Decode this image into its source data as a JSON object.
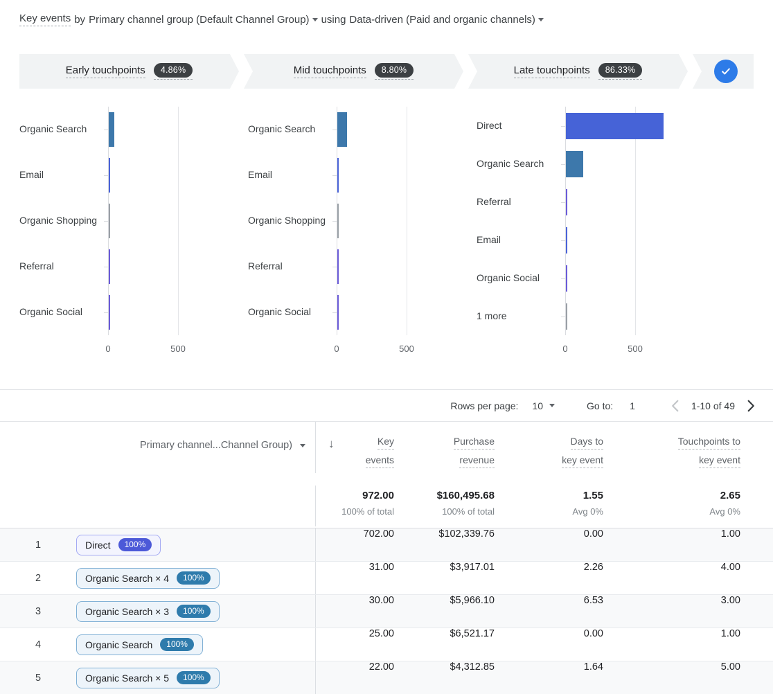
{
  "header": {
    "metric": "Key events",
    "by": "by",
    "dimension": "Primary channel group (Default Channel Group)",
    "using": "using",
    "model": "Data-driven (Paid and organic channels)"
  },
  "funnel": {
    "stages": [
      {
        "id": "early",
        "label": "Early touchpoints",
        "value": "4.86%"
      },
      {
        "id": "mid",
        "label": "Mid touchpoints",
        "value": "8.80%"
      },
      {
        "id": "late",
        "label": "Late touchpoints",
        "value": "86.33%"
      }
    ],
    "badge_bg": "#3c4043",
    "check_color": "#2d7be8"
  },
  "chart_data": [
    {
      "type": "bar",
      "orientation": "horizontal",
      "title": "Early touchpoints",
      "categories": [
        "Organic Search",
        "Email",
        "Organic Shopping",
        "Referral",
        "Organic Social"
      ],
      "values": [
        40,
        5,
        2,
        3,
        3
      ],
      "colors": [
        "#3d78ab",
        "#4a63d8",
        "#9aa0a6",
        "#6a5bd8",
        "#6a5bd8"
      ],
      "xticks": [
        0,
        500
      ],
      "xlim": [
        0,
        940
      ],
      "grid": true
    },
    {
      "type": "bar",
      "orientation": "horizontal",
      "title": "Mid touchpoints",
      "categories": [
        "Organic Search",
        "Email",
        "Organic Shopping",
        "Referral",
        "Organic Social"
      ],
      "values": [
        70,
        6,
        2,
        4,
        4
      ],
      "colors": [
        "#3d78ab",
        "#4a63d8",
        "#9aa0a6",
        "#6a5bd8",
        "#6a5bd8"
      ],
      "xticks": [
        0,
        500
      ],
      "xlim": [
        0,
        940
      ],
      "grid": true
    },
    {
      "type": "bar",
      "orientation": "horizontal",
      "title": "Late touchpoints",
      "categories": [
        "Direct",
        "Organic Search",
        "Referral",
        "Email",
        "Organic Social",
        "1 more"
      ],
      "values": [
        697,
        125,
        6,
        6,
        5,
        2
      ],
      "colors": [
        "#4663d7",
        "#3d78ab",
        "#6a5bd8",
        "#4a63d8",
        "#6a5bd8",
        "#9aa0a6"
      ],
      "xticks": [
        0,
        500
      ],
      "xlim": [
        0,
        940
      ],
      "grid": true
    }
  ],
  "pagination": {
    "rows_per_page_label": "Rows per page:",
    "rows_per_page_value": "10",
    "go_to_label": "Go to:",
    "go_to_value": "1",
    "range_text": "1-10 of 49"
  },
  "table": {
    "dimension_header": "Primary channel...Channel Group)",
    "sort_icon": "↓",
    "columns": [
      {
        "label_lines": [
          "Key",
          "events"
        ],
        "total": "972.00",
        "total_sub": "100% of total"
      },
      {
        "label_lines": [
          "Purchase",
          "revenue"
        ],
        "total": "$160,495.68",
        "total_sub": "100% of total"
      },
      {
        "label_lines": [
          "Days to",
          "key event"
        ],
        "total": "1.55",
        "total_sub": "Avg 0%"
      },
      {
        "label_lines": [
          "Touchpoints to",
          "key event"
        ],
        "total": "2.65",
        "total_sub": "Avg 0%"
      }
    ],
    "chip_styles": {
      "indigo": {
        "bg": "#f3f4fe",
        "border": "#a4aaf3",
        "pill": "#4c59d8"
      },
      "blue": {
        "bg": "#edf4fa",
        "border": "#82b1d6",
        "pill": "#2e7bac"
      }
    },
    "rows": [
      {
        "index": "1",
        "path": "Direct",
        "pct": "100%",
        "style": "indigo",
        "values": [
          "702.00",
          "$102,339.76",
          "0.00",
          "1.00"
        ]
      },
      {
        "index": "2",
        "path": "Organic Search × 4",
        "pct": "100%",
        "style": "blue",
        "values": [
          "31.00",
          "$3,917.01",
          "2.26",
          "4.00"
        ]
      },
      {
        "index": "3",
        "path": "Organic Search × 3",
        "pct": "100%",
        "style": "blue",
        "values": [
          "30.00",
          "$5,966.10",
          "6.53",
          "3.00"
        ]
      },
      {
        "index": "4",
        "path": "Organic Search",
        "pct": "100%",
        "style": "blue",
        "values": [
          "25.00",
          "$6,521.17",
          "0.00",
          "1.00"
        ]
      },
      {
        "index": "5",
        "path": "Organic Search × 5",
        "pct": "100%",
        "style": "blue",
        "values": [
          "22.00",
          "$4,312.85",
          "1.64",
          "5.00"
        ]
      }
    ]
  }
}
